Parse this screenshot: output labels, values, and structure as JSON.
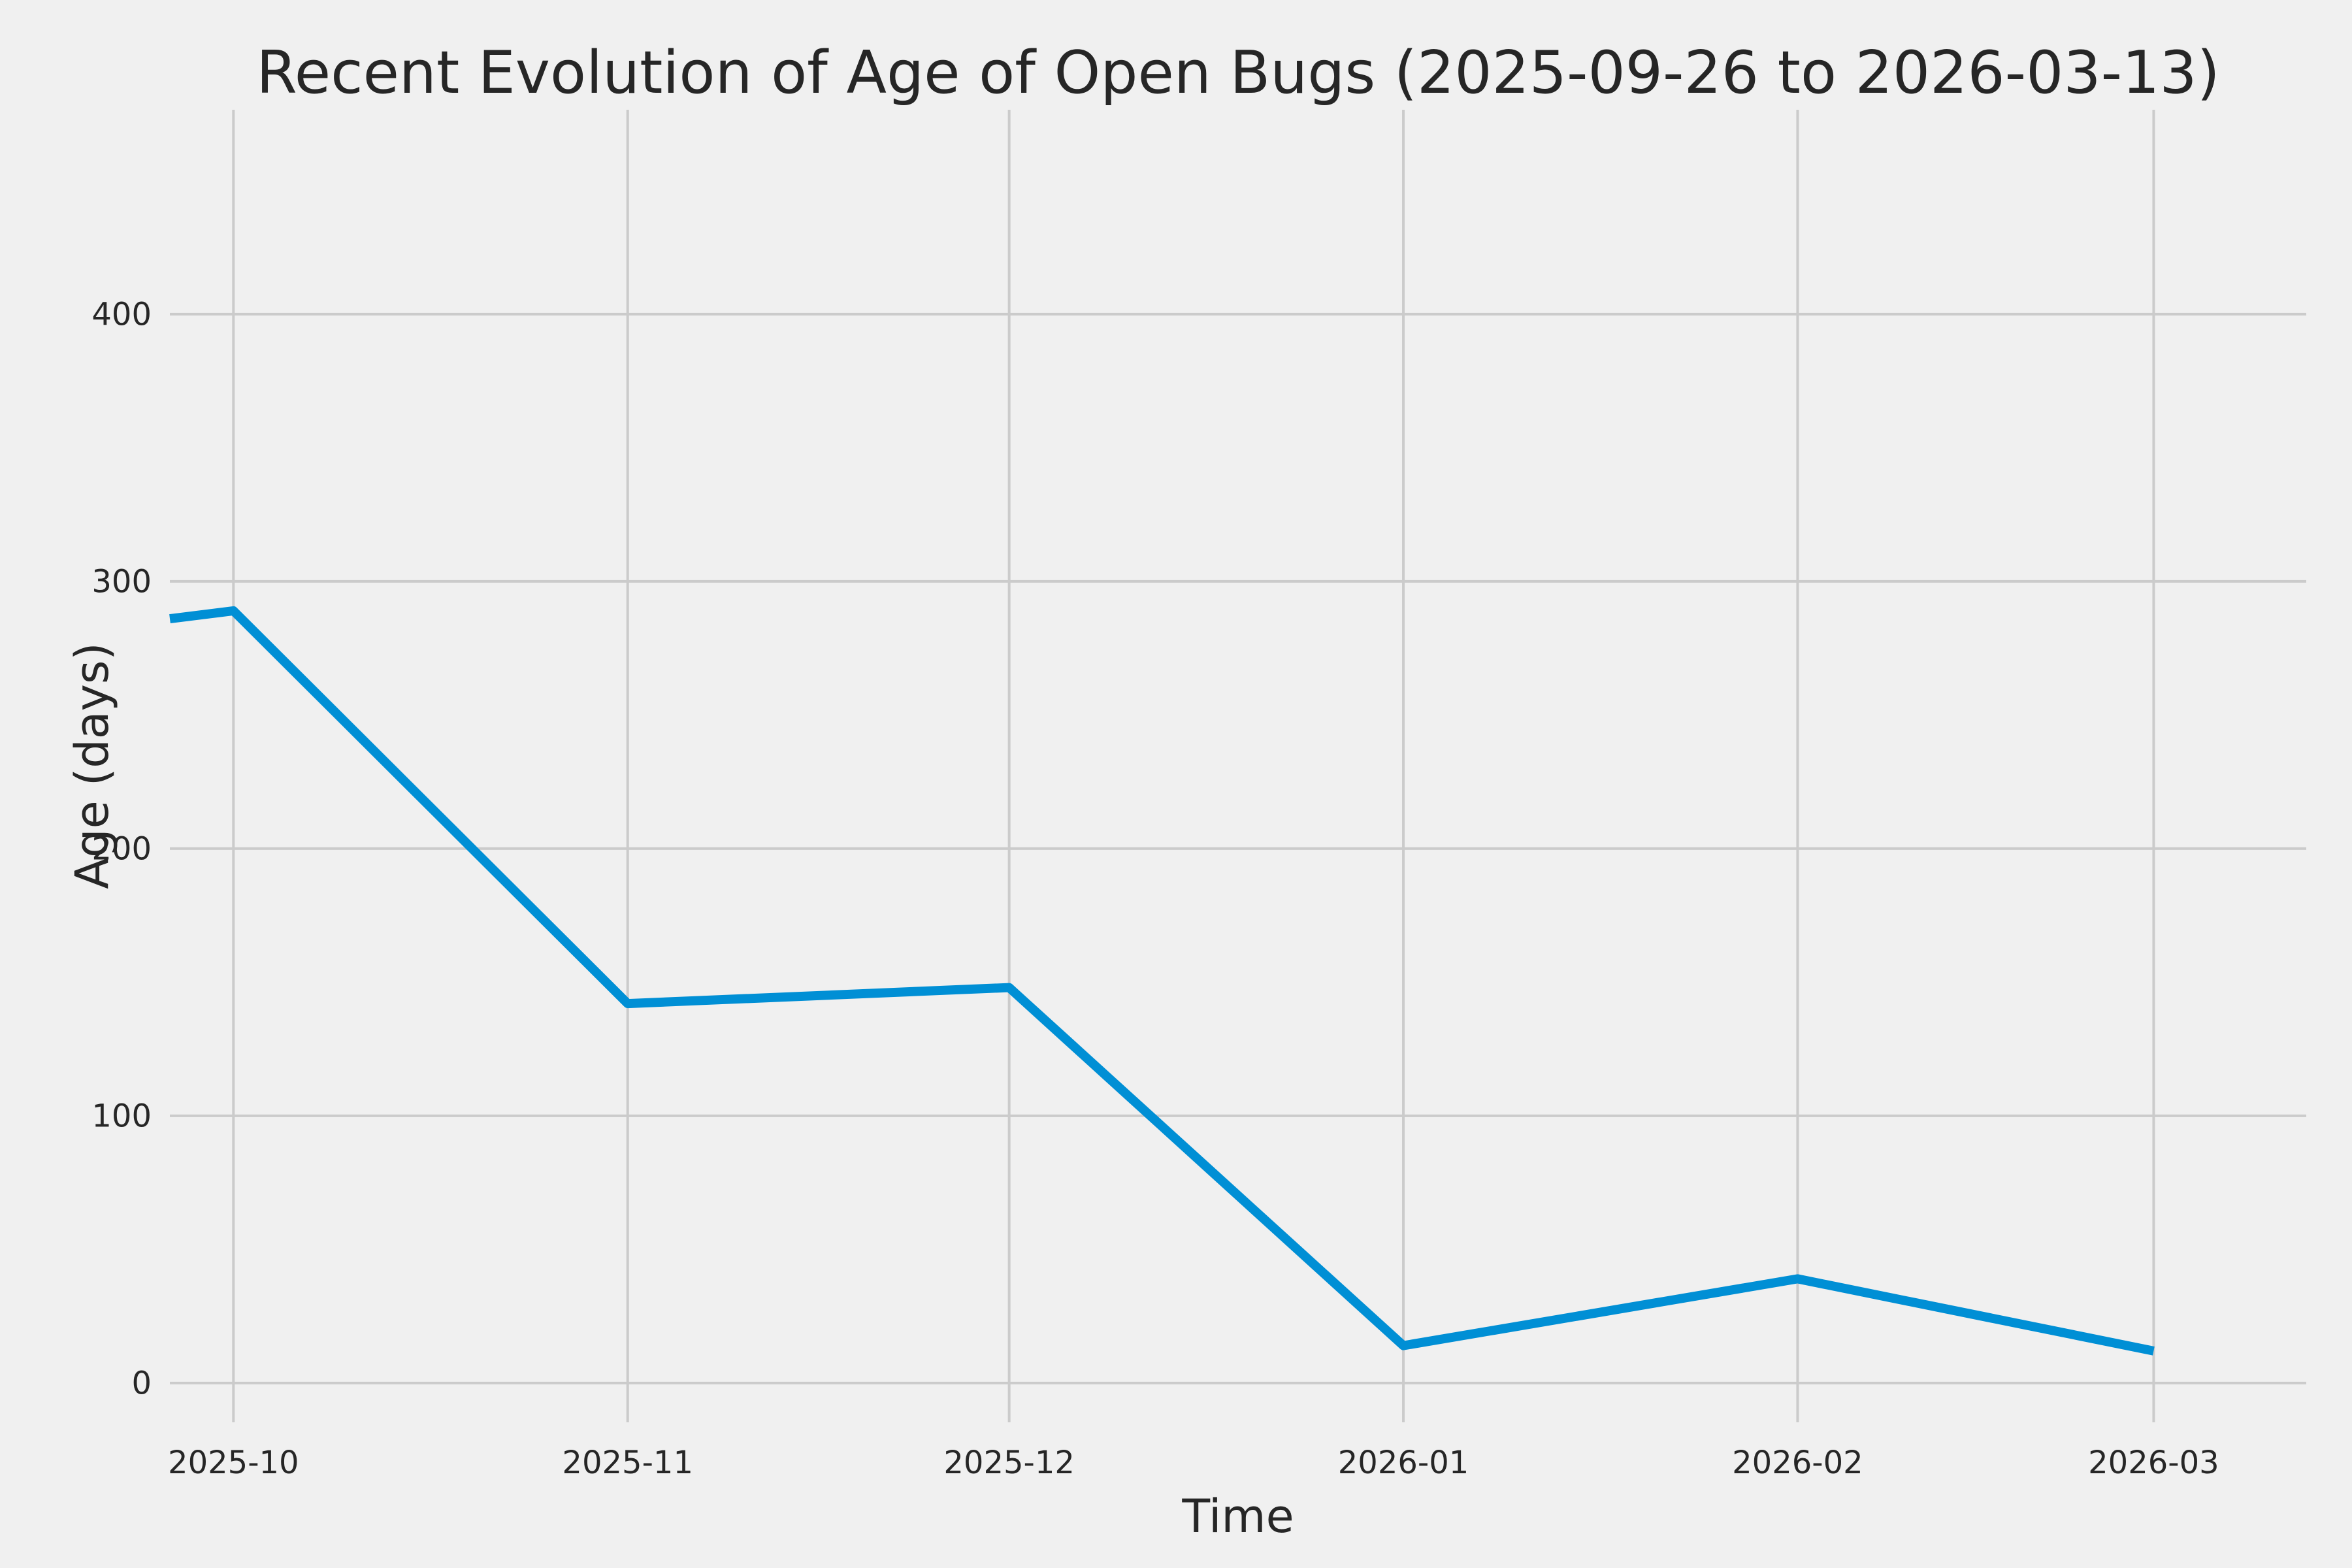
{
  "figure": {
    "background_color": "#F0F0F0",
    "grid_color": "#CBCBCB",
    "text_color": "#262626",
    "line_color": "#008FD5"
  },
  "chart_data": {
    "type": "line",
    "title": "Recent Evolution of Age of Open Bugs (2025-09-26 to 2026-03-13)",
    "xlabel": "Time",
    "ylabel": "Age (days)",
    "x_tick_labels": [
      "2025-10",
      "2025-11",
      "2025-12",
      "2026-01",
      "2026-02",
      "2026-03"
    ],
    "x_tick_dates": [
      "2025-10-01",
      "2025-11-01",
      "2025-12-01",
      "2026-01-01",
      "2026-02-01",
      "2026-03-01"
    ],
    "y_ticks": [
      0,
      100,
      200,
      300,
      400
    ],
    "xlim_dates": [
      "2025-09-26",
      "2026-03-13"
    ],
    "ylim": [
      -14.7,
      476.5
    ],
    "grid": true,
    "legend": false,
    "series": [
      {
        "name": "age_of_open_bugs_days",
        "dates": [
          "2025-09-26",
          "2025-10-01",
          "2025-11-01",
          "2025-12-01",
          "2026-01-01",
          "2026-02-01",
          "2026-03-01"
        ],
        "values": [
          286,
          289,
          142,
          148,
          14,
          39,
          12
        ]
      }
    ]
  }
}
